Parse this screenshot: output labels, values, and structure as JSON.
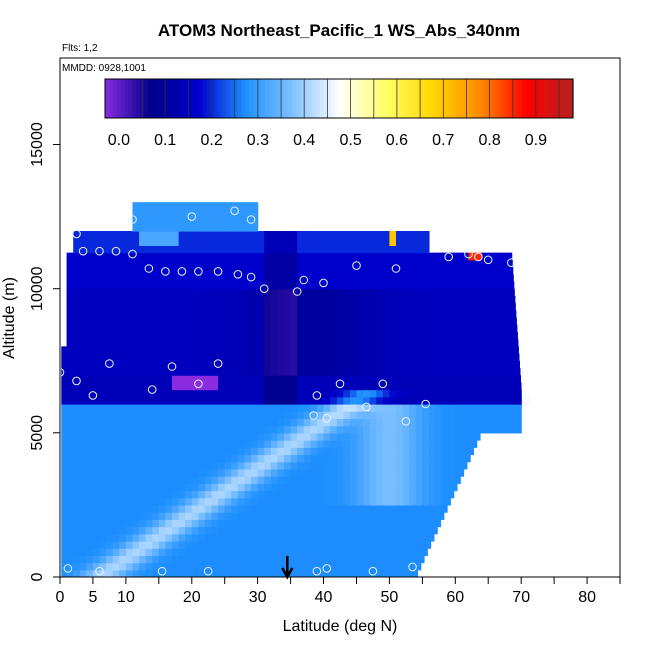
{
  "chart_data": {
    "type": "heatmap",
    "title": "ATOM3 Northeast_Pacific_1 WS_Abs_340nm",
    "flights_label": "Flts: 1,2",
    "dates_label": "MMDD: 0928,1001",
    "xlabel": "Latitude (deg N)",
    "ylabel": "Altitude (m)",
    "xlim": [
      0,
      85
    ],
    "ylim": [
      0,
      18000
    ],
    "x_ticks": [
      0,
      5,
      10,
      20,
      30,
      40,
      50,
      60,
      70,
      80
    ],
    "y_ticks": [
      0,
      5000,
      10000,
      15000
    ],
    "colorbar": {
      "min": -0.03,
      "max": 0.98,
      "ticks": [
        0.0,
        0.1,
        0.2,
        0.3,
        0.4,
        0.5,
        0.6,
        0.7,
        0.8,
        0.9
      ],
      "tick_labels": [
        "0.0",
        "0.1",
        "0.2",
        "0.3",
        "0.4",
        "0.5",
        "0.6",
        "0.7",
        "0.8",
        "0.9"
      ],
      "colors": [
        "#8a2be2",
        "#00008b",
        "#0000cd",
        "#1e90ff",
        "#7ec0ff",
        "#ffffff",
        "#ffff66",
        "#ffd700",
        "#ff8c00",
        "#ff0000",
        "#b22222"
      ]
    },
    "arrow_latitude": 34.5,
    "sample_points": [
      [
        0,
        7100
      ],
      [
        1.2,
        300
      ],
      [
        6,
        200
      ],
      [
        15.5,
        200
      ],
      [
        22.5,
        200
      ],
      [
        39,
        200
      ],
      [
        40.5,
        300
      ],
      [
        47.5,
        200
      ],
      [
        53.5,
        350
      ],
      [
        2.5,
        6800
      ],
      [
        5,
        6300
      ],
      [
        7.5,
        7400
      ],
      [
        14,
        6500
      ],
      [
        17,
        7300
      ],
      [
        21,
        6700
      ],
      [
        24,
        7400
      ],
      [
        38.5,
        5600
      ],
      [
        39,
        6300
      ],
      [
        40.5,
        5500
      ],
      [
        42.5,
        6700
      ],
      [
        46.5,
        5900
      ],
      [
        49,
        6700
      ],
      [
        52.5,
        5400
      ],
      [
        55.5,
        6000
      ],
      [
        70.8,
        6100
      ],
      [
        2.5,
        11900
      ],
      [
        3.5,
        11300
      ],
      [
        6,
        11300
      ],
      [
        8.5,
        11300
      ],
      [
        11,
        11200
      ],
      [
        11,
        12400
      ],
      [
        13.5,
        10700
      ],
      [
        16,
        10600
      ],
      [
        18.5,
        10600
      ],
      [
        20,
        12500
      ],
      [
        21,
        10600
      ],
      [
        24,
        10600
      ],
      [
        26.5,
        12700
      ],
      [
        29,
        12400
      ],
      [
        27,
        10500
      ],
      [
        29,
        10400
      ],
      [
        31,
        10000
      ],
      [
        36,
        9900
      ],
      [
        37,
        10300
      ],
      [
        40,
        10200
      ],
      [
        45,
        10800
      ],
      [
        51,
        10700
      ],
      [
        59,
        11100
      ],
      [
        62,
        11200
      ],
      [
        63.5,
        11100
      ],
      [
        65,
        11000
      ],
      [
        68.5,
        10900
      ]
    ]
  }
}
